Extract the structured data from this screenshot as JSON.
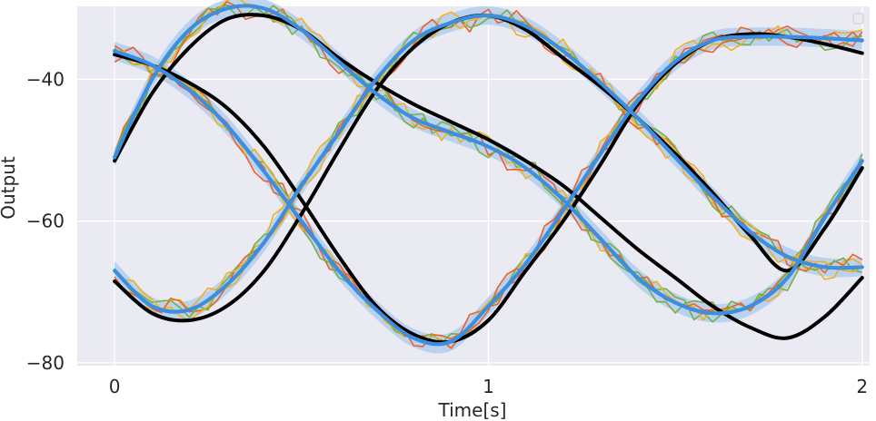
{
  "chart_data": {
    "type": "line",
    "title": "",
    "xlabel": "Time[s]",
    "ylabel": "Output",
    "xlim": [
      -0.1,
      2.02
    ],
    "ylim": [
      -80.4,
      -29.7
    ],
    "xticks": [
      0,
      1,
      2
    ],
    "xtick_labels": [
      "0",
      "1",
      "2"
    ],
    "yticks": [
      -40,
      -60,
      -80
    ],
    "ytick_labels": [
      "−40",
      "−60",
      "−80"
    ],
    "grid": true,
    "legend": {
      "location": "top-right",
      "entries": []
    },
    "colors": {
      "background": "#eaeaf2",
      "grid": "#ffffff",
      "reference": "#000000",
      "mean": "#3c8ee0",
      "band": "#a9c8ef",
      "sample_orange": "#ec612a",
      "sample_green": "#76b041",
      "sample_yellow": "#efb11d"
    },
    "reference_series": [
      {
        "x": [
          0,
          0.1,
          0.2,
          0.3,
          0.4,
          0.5,
          0.6,
          0.7,
          0.8,
          0.9,
          1.0,
          1.1,
          1.2,
          1.3,
          1.4,
          1.5,
          1.6,
          1.7,
          1.8,
          1.9,
          2.0
        ],
        "y": [
          -36.5,
          -38.0,
          -40.5,
          -44.0,
          -49.5,
          -57.0,
          -65.0,
          -72.0,
          -76.0,
          -77.0,
          -74.0,
          -67.0,
          -60.0,
          -52.0,
          -43.5,
          -37.8,
          -34.5,
          -33.6,
          -34.0,
          -35.0,
          -36.3
        ]
      },
      {
        "x": [
          0,
          0.1,
          0.2,
          0.3,
          0.4,
          0.5,
          0.6,
          0.7,
          0.8,
          0.9,
          1.0,
          1.1,
          1.2,
          1.3,
          1.4,
          1.5,
          1.6,
          1.7,
          1.8,
          1.9,
          2.0
        ],
        "y": [
          -51.5,
          -42.0,
          -35.5,
          -31.5,
          -31.0,
          -33.0,
          -37.0,
          -40.5,
          -43.5,
          -46.0,
          -48.5,
          -51.5,
          -55.0,
          -59.5,
          -64.0,
          -68.0,
          -72.0,
          -75.0,
          -76.5,
          -73.5,
          -68.0
        ]
      },
      {
        "x": [
          0,
          0.1,
          0.2,
          0.3,
          0.4,
          0.5,
          0.6,
          0.7,
          0.8,
          0.9,
          1.0,
          1.1,
          1.2,
          1.3,
          1.4,
          1.5,
          1.6,
          1.7,
          1.8,
          1.9,
          2.0
        ],
        "y": [
          -68.5,
          -73.0,
          -74.0,
          -72.0,
          -67.0,
          -59.0,
          -50.0,
          -41.5,
          -35.5,
          -32.0,
          -31.0,
          -33.0,
          -37.0,
          -41.0,
          -45.5,
          -50.5,
          -56.0,
          -62.0,
          -67.0,
          -61.0,
          -52.5
        ]
      }
    ],
    "mean_series": [
      {
        "x": [
          0,
          0.1,
          0.2,
          0.3,
          0.4,
          0.5,
          0.6,
          0.7,
          0.8,
          0.9,
          1.0,
          1.1,
          1.2,
          1.3,
          1.4,
          1.5,
          1.6,
          1.7,
          1.8,
          1.9,
          2.0
        ],
        "y": [
          -36.0,
          -38.0,
          -41.5,
          -46.5,
          -53.0,
          -60.0,
          -67.0,
          -72.5,
          -76.5,
          -77.0,
          -72.0,
          -66.0,
          -58.5,
          -50.5,
          -43.0,
          -37.5,
          -34.5,
          -34.0,
          -34.0,
          -34.2,
          -34.5
        ]
      },
      {
        "x": [
          0,
          0.1,
          0.2,
          0.3,
          0.4,
          0.5,
          0.6,
          0.7,
          0.8,
          0.9,
          1.0,
          1.1,
          1.2,
          1.3,
          1.4,
          1.5,
          1.6,
          1.7,
          1.8,
          1.9,
          2.0
        ],
        "y": [
          -51.0,
          -40.0,
          -33.0,
          -30.0,
          -30.0,
          -33.0,
          -37.5,
          -42.0,
          -45.5,
          -47.5,
          -49.5,
          -52.5,
          -57.0,
          -62.5,
          -68.0,
          -71.5,
          -73.0,
          -72.0,
          -68.0,
          -59.5,
          -51.5
        ]
      },
      {
        "x": [
          0,
          0.1,
          0.2,
          0.3,
          0.4,
          0.5,
          0.6,
          0.7,
          0.8,
          0.9,
          1.0,
          1.1,
          1.2,
          1.3,
          1.4,
          1.5,
          1.6,
          1.7,
          1.8,
          1.9,
          2.0
        ],
        "y": [
          -67.0,
          -72.0,
          -72.5,
          -69.0,
          -63.0,
          -55.0,
          -47.5,
          -40.0,
          -34.5,
          -32.0,
          -31.0,
          -32.5,
          -36.0,
          -40.5,
          -45.5,
          -51.0,
          -56.5,
          -61.5,
          -65.0,
          -66.5,
          -66.5
        ]
      }
    ]
  }
}
